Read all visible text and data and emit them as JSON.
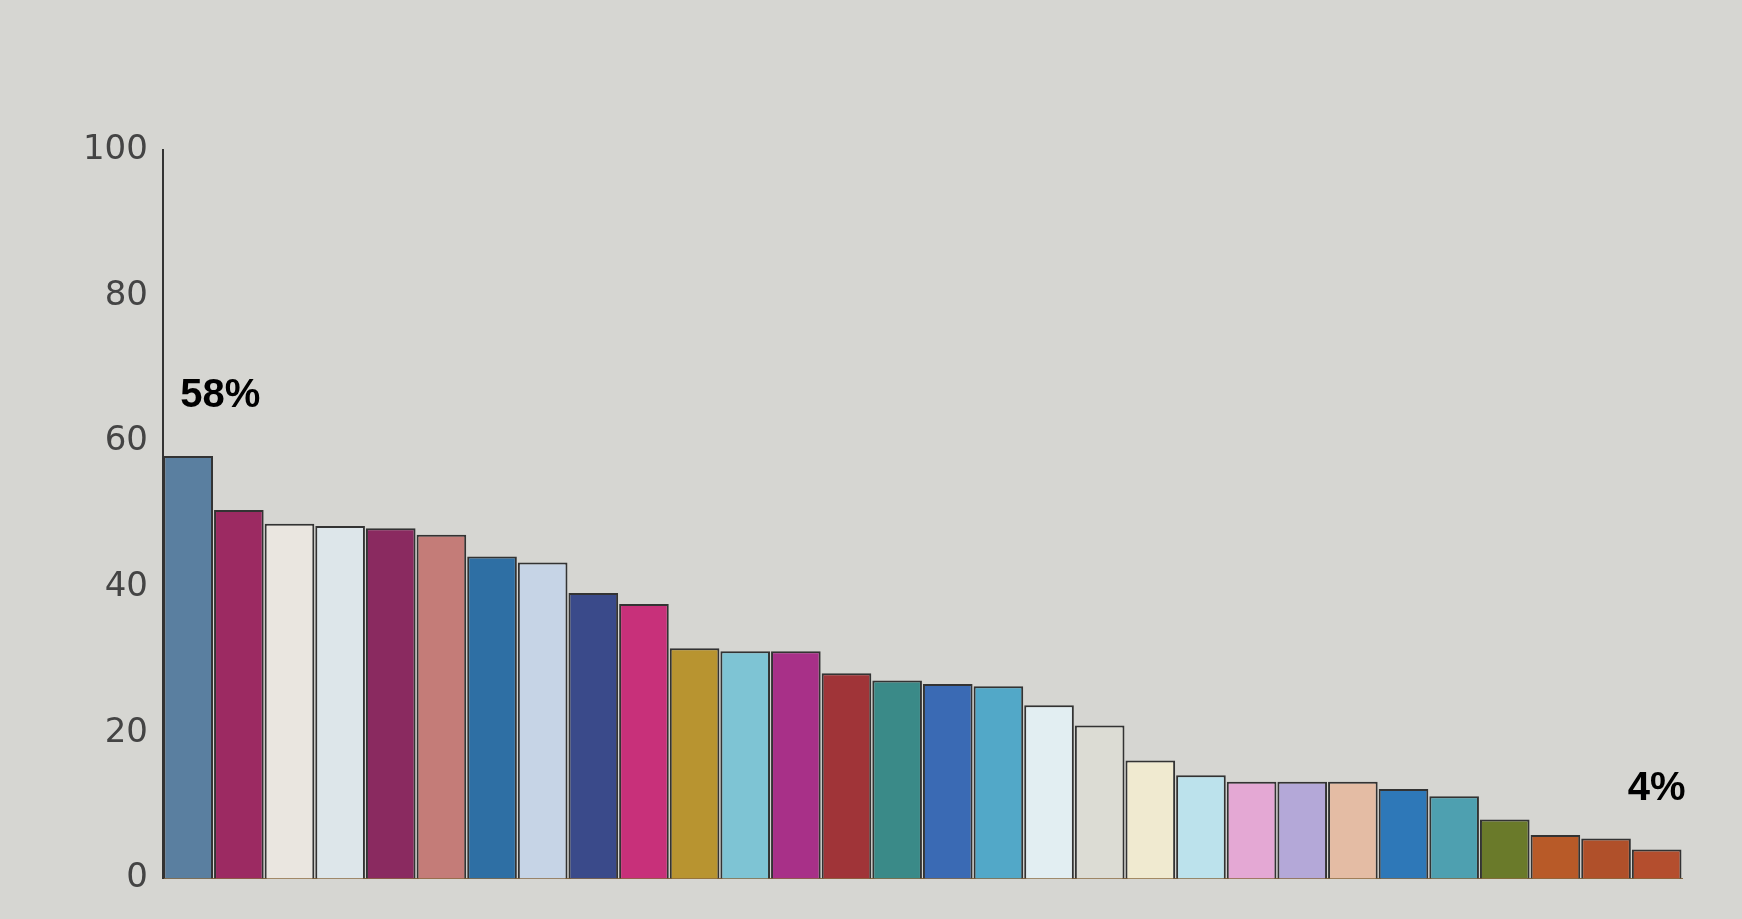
{
  "chart_data": {
    "type": "bar",
    "categories": [
      null,
      null,
      null,
      null,
      null,
      null,
      null,
      null,
      null,
      null,
      null,
      null,
      null,
      null,
      null,
      null,
      null,
      null,
      null,
      null,
      null,
      null,
      null,
      null,
      null,
      null,
      null,
      null,
      null,
      null
    ],
    "values": [
      58,
      50.6,
      48.7,
      48.4,
      48.1,
      47.2,
      44.2,
      43.4,
      39.2,
      37.7,
      31.6,
      31.2,
      31.2,
      28.2,
      27.2,
      26.7,
      26.4,
      23.8,
      21,
      16.2,
      14.2,
      13.3,
      13.3,
      13.3,
      12.3,
      11.3,
      8.1,
      6,
      5.5,
      4
    ],
    "colors": [
      "#5a7fa0",
      "#9c2a62",
      "#eae6e0",
      "#dde6ea",
      "#8a2a60",
      "#c47c78",
      "#2e6fa4",
      "#c6d4e6",
      "#3a4a8a",
      "#c8307a",
      "#b89430",
      "#7ec4d4",
      "#a83088",
      "#a03438",
      "#3a8a88",
      "#3a6ab4",
      "#52a8c8",
      "#e2eef2",
      "#dcdcd4",
      "#f0ead0",
      "#bce2ec",
      "#e4a8d4",
      "#b4a8d8",
      "#e4bca4",
      "#2e78b8",
      "#4ea0b0",
      "#6a7a2a",
      "#b85a28",
      "#b0502a",
      "#b44e2e"
    ],
    "value_labels": [
      "58%",
      null,
      null,
      null,
      null,
      null,
      null,
      null,
      null,
      null,
      null,
      null,
      null,
      null,
      null,
      null,
      null,
      null,
      null,
      null,
      null,
      null,
      null,
      null,
      null,
      null,
      null,
      null,
      null,
      "4%"
    ],
    "ylim": [
      0,
      100
    ],
    "yticks": [
      0,
      20,
      40,
      60,
      80,
      100
    ],
    "grid": false,
    "legend": false
  }
}
